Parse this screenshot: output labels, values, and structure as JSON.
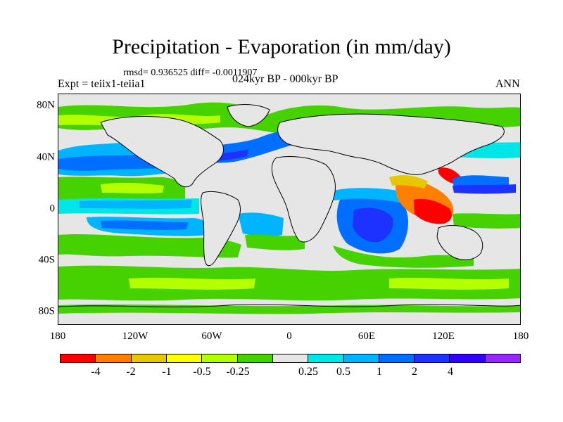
{
  "title": "Precipitation - Evaporation (in mm/day)",
  "stats": "rmsd= 0.936525 diff= -0.0011907",
  "subtitle": "024kyr BP - 000kyr BP",
  "expt": "Expt = teiix1-teiia1",
  "season": "ANN",
  "axes": {
    "lat_labels": [
      "80N",
      "40N",
      "0",
      "40S",
      "80S"
    ],
    "lon_labels": [
      "180",
      "120W",
      "60W",
      "0",
      "60E",
      "120E",
      "180"
    ]
  },
  "colorbar": {
    "colors": [
      "#ff0000",
      "#ff8000",
      "#e6c800",
      "#ffff00",
      "#b4ff00",
      "#46d200",
      "#e6e6e6",
      "#00e6e6",
      "#00b4ff",
      "#006eff",
      "#1e32ff",
      "#3200ff",
      "#9628ff"
    ],
    "labels": [
      "-4",
      "-2",
      "-1",
      "-0.5",
      "-0.25",
      "0.25",
      "0.5",
      "1",
      "2",
      "4"
    ]
  }
}
